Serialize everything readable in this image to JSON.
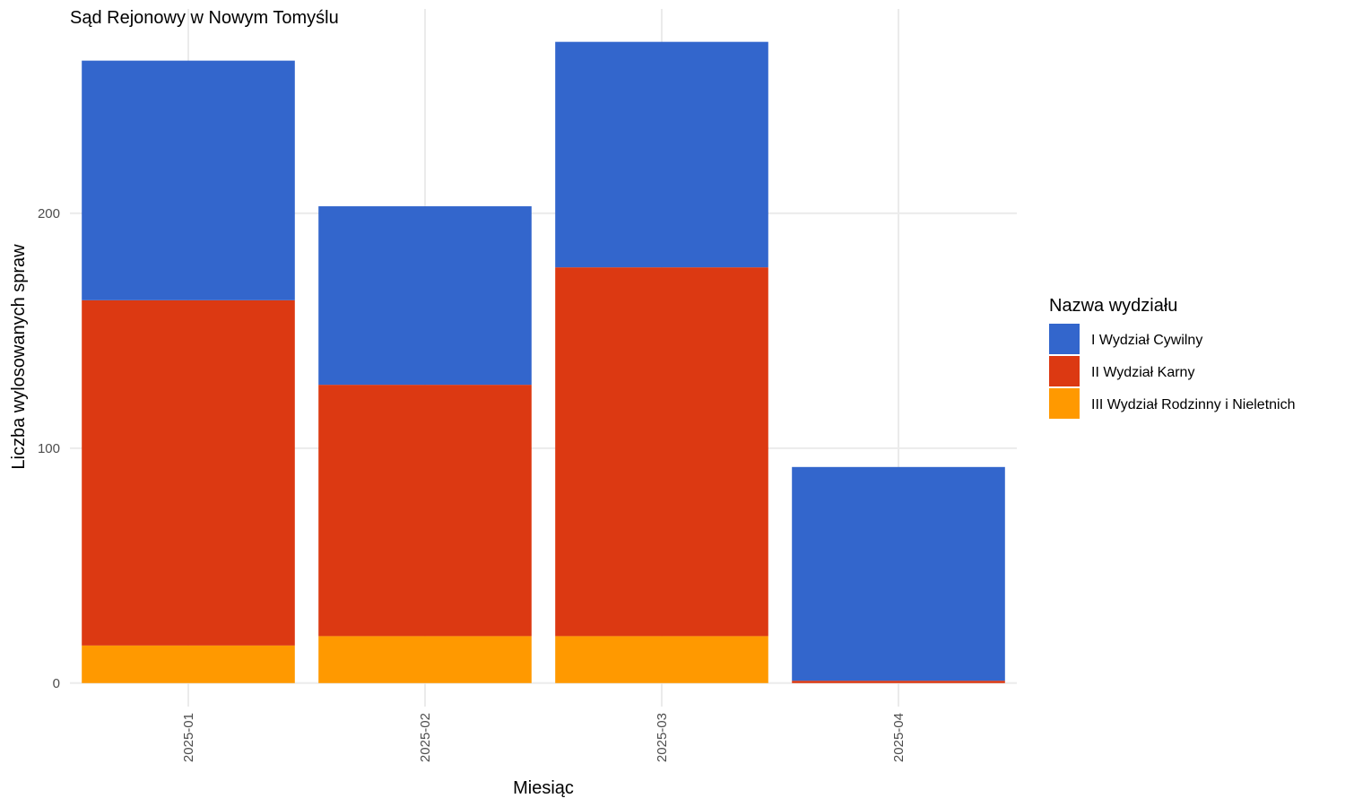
{
  "chart_data": {
    "type": "bar",
    "stacked": true,
    "title": "Sąd Rejonowy w Nowym Tomyślu",
    "xlabel": "Miesiąc",
    "ylabel": "Liczba wylosowanych spraw",
    "categories": [
      "2025-01",
      "2025-02",
      "2025-03",
      "2025-04"
    ],
    "series": [
      {
        "name": "III Wydział Rodzinny i Nieletnich",
        "color": "#FF9900",
        "values": [
          16,
          20,
          20,
          0
        ]
      },
      {
        "name": "II Wydział Karny",
        "color": "#DC3912",
        "values": [
          147,
          107,
          157,
          1
        ]
      },
      {
        "name": "I Wydział Cywilny",
        "color": "#3366CC",
        "values": [
          102,
          76,
          96,
          91
        ]
      }
    ],
    "ylim": [
      -10,
      287
    ],
    "yticks": [
      0,
      100,
      200
    ],
    "grid": true,
    "legend": {
      "title": "Nazwa wydziału",
      "position": "right",
      "order": [
        "I Wydział Cywilny",
        "II Wydział Karny",
        "III Wydział Rodzinny i Nieletnich"
      ]
    }
  }
}
